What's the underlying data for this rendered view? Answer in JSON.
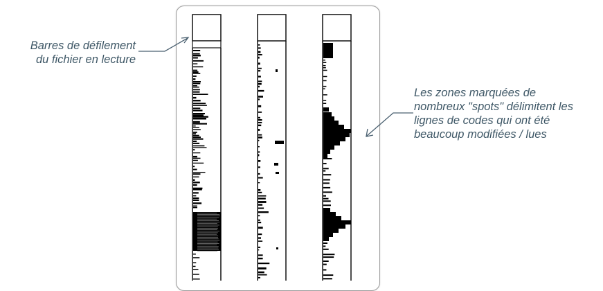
{
  "annotations": {
    "left": {
      "lines": [
        "Barres de défilement",
        "du fichier en lecture"
      ]
    },
    "right": {
      "lines": [
        "Les zones marquées de",
        "nombreux \"spots\" délimitent les",
        "lignes de codes qui ont été",
        "beaucoup modifiées / lues"
      ]
    }
  },
  "colors": {
    "label_text": "#3e5766",
    "arrow": "#4a6070",
    "bar_border": "#111111",
    "spot": "#000000"
  }
}
